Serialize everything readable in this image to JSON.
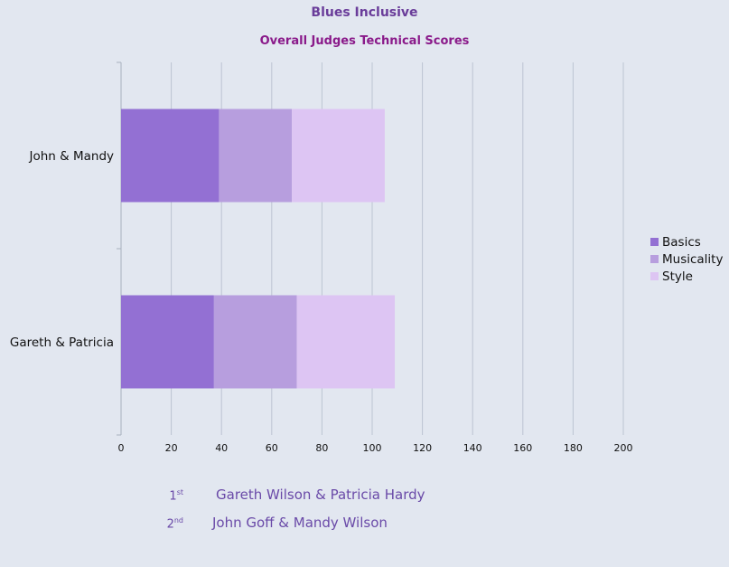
{
  "header": {
    "title": "Blues Inclusive"
  },
  "chart_data": {
    "type": "bar",
    "orientation": "horizontal",
    "stacked": true,
    "title": "Overall Judges Technical Scores",
    "categories": [
      "John & Mandy",
      "Gareth & Patricia"
    ],
    "series": [
      {
        "name": "Basics",
        "values": [
          39,
          37
        ],
        "color": "#9370d3"
      },
      {
        "name": "Musicality",
        "values": [
          29,
          33
        ],
        "color": "#b79ede"
      },
      {
        "name": "Style",
        "values": [
          37,
          39
        ],
        "color": "#ddc5f3"
      }
    ],
    "xlim": [
      0,
      200
    ],
    "xticks": [
      "0",
      "20",
      "40",
      "60",
      "80",
      "100",
      "120",
      "140",
      "160",
      "180",
      "200"
    ],
    "grid": true,
    "legend_position": "right"
  },
  "results": [
    {
      "place_num": "1",
      "place_suffix": "st",
      "names": "Gareth Wilson & Patricia Hardy"
    },
    {
      "place_num": "2",
      "place_suffix": "nd",
      "names": "John Goff & Mandy Wilson"
    }
  ]
}
